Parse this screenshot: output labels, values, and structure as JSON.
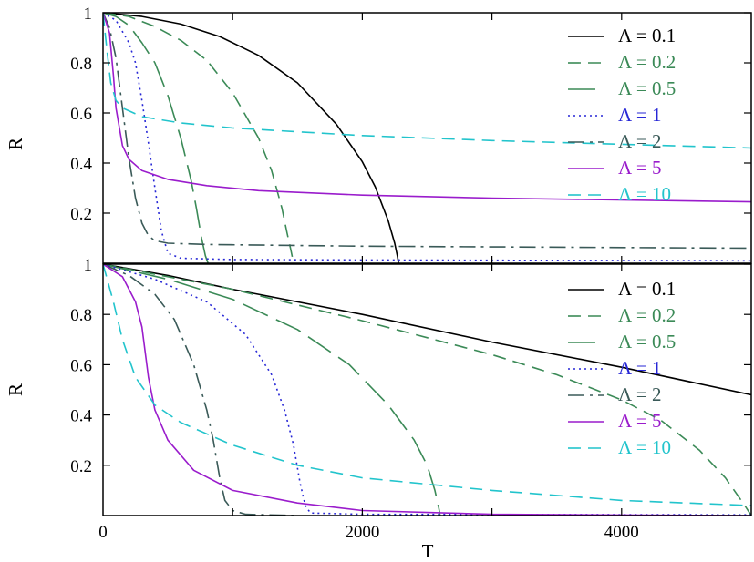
{
  "chart_data": [
    {
      "type": "line",
      "panel": "top",
      "xlabel": "",
      "ylabel": "R",
      "xlim": [
        0,
        5000
      ],
      "ylim": [
        0,
        1
      ],
      "yticks": [
        1,
        0.8,
        0.6,
        0.4,
        0.2
      ],
      "legend_position": "top-right",
      "series": [
        {
          "name": "Λ = 0.1",
          "color": "#000000",
          "dash": "solid",
          "x": [
            0,
            300,
            600,
            900,
            1200,
            1500,
            1800,
            2000,
            2100,
            2200,
            2250,
            2270,
            2280
          ],
          "y": [
            1,
            0.985,
            0.955,
            0.905,
            0.83,
            0.72,
            0.555,
            0.405,
            0.305,
            0.17,
            0.08,
            0.03,
            0.0
          ]
        },
        {
          "name": "Λ = 0.2",
          "color": "#3b8a57",
          "dash": "dashed",
          "x": [
            0,
            200,
            400,
            600,
            800,
            1000,
            1200,
            1300,
            1380,
            1420,
            1450,
            1470
          ],
          "y": [
            1,
            0.985,
            0.945,
            0.89,
            0.81,
            0.68,
            0.5,
            0.37,
            0.22,
            0.12,
            0.05,
            0.0
          ]
        },
        {
          "name": "Λ = 0.5",
          "color": "#3b8a57",
          "dash": "longdash",
          "x": [
            0,
            100,
            200,
            300,
            400,
            500,
            600,
            680,
            720,
            760,
            790,
            810
          ],
          "y": [
            1,
            0.985,
            0.95,
            0.88,
            0.8,
            0.67,
            0.5,
            0.33,
            0.22,
            0.1,
            0.03,
            0.0
          ]
        },
        {
          "name": "Λ = 1",
          "color": "#2727d6",
          "dash": "dotted",
          "x": [
            0,
            100,
            200,
            250,
            300,
            350,
            400,
            450,
            500,
            600,
            1000,
            2000,
            5000
          ],
          "y": [
            1,
            0.97,
            0.88,
            0.8,
            0.65,
            0.48,
            0.3,
            0.13,
            0.04,
            0.02,
            0.015,
            0.013,
            0.01
          ]
        },
        {
          "name": "Λ = 2",
          "color": "#3a5a58",
          "dash": "dashdot",
          "x": [
            0,
            50,
            100,
            150,
            200,
            250,
            300,
            350,
            400,
            500,
            800,
            2000,
            5000
          ],
          "y": [
            1,
            0.94,
            0.82,
            0.62,
            0.42,
            0.26,
            0.16,
            0.11,
            0.09,
            0.08,
            0.075,
            0.068,
            0.06
          ]
        },
        {
          "name": "Λ = 5",
          "color": "#9a1ccc",
          "dash": "solid",
          "x": [
            0,
            50,
            80,
            100,
            150,
            200,
            300,
            500,
            800,
            1200,
            2000,
            3000,
            5000
          ],
          "y": [
            1,
            0.92,
            0.75,
            0.62,
            0.47,
            0.415,
            0.37,
            0.335,
            0.31,
            0.29,
            0.272,
            0.26,
            0.245
          ]
        },
        {
          "name": "Λ = 10",
          "color": "#22c4cc",
          "dash": "dashed",
          "x": [
            0,
            30,
            60,
            100,
            150,
            300,
            600,
            1000,
            2000,
            3000,
            5000
          ],
          "y": [
            1,
            0.85,
            0.72,
            0.65,
            0.62,
            0.585,
            0.56,
            0.54,
            0.51,
            0.49,
            0.46
          ]
        }
      ]
    },
    {
      "type": "line",
      "panel": "bottom",
      "xlabel": "T",
      "ylabel": "R",
      "xlim": [
        0,
        5000
      ],
      "ylim": [
        0,
        1
      ],
      "xticks": [
        0,
        2000,
        4000
      ],
      "yticks": [
        1,
        0.8,
        0.6,
        0.4,
        0.2
      ],
      "legend_position": "top-right",
      "series": [
        {
          "name": "Λ = 0.1",
          "color": "#000000",
          "dash": "solid",
          "x": [
            0,
            500,
            1000,
            2000,
            3000,
            4000,
            5000
          ],
          "y": [
            1,
            0.955,
            0.9,
            0.8,
            0.69,
            0.59,
            0.48
          ]
        },
        {
          "name": "Λ = 0.2",
          "color": "#3b8a57",
          "dash": "dashed",
          "x": [
            0,
            1000,
            2000,
            3000,
            3500,
            4000,
            4300,
            4600,
            4800,
            4950,
            5000
          ],
          "y": [
            1,
            0.9,
            0.775,
            0.64,
            0.56,
            0.46,
            0.38,
            0.26,
            0.15,
            0.04,
            0.0
          ]
        },
        {
          "name": "Λ = 0.5",
          "color": "#3b8a57",
          "dash": "longdash",
          "x": [
            0,
            500,
            1000,
            1500,
            1900,
            2200,
            2400,
            2500,
            2560,
            2590,
            2600
          ],
          "y": [
            1,
            0.94,
            0.86,
            0.74,
            0.6,
            0.44,
            0.3,
            0.2,
            0.1,
            0.03,
            0.0
          ]
        },
        {
          "name": "Λ = 1",
          "color": "#2727d6",
          "dash": "dotted",
          "x": [
            0,
            400,
            800,
            1100,
            1300,
            1400,
            1470,
            1520,
            1560,
            1600,
            2000,
            5000
          ],
          "y": [
            1,
            0.94,
            0.85,
            0.72,
            0.56,
            0.42,
            0.28,
            0.13,
            0.04,
            0.01,
            0.005,
            0.003
          ]
        },
        {
          "name": "Λ = 2",
          "color": "#3a5a58",
          "dash": "dashdot",
          "x": [
            0,
            200,
            400,
            550,
            700,
            800,
            850,
            900,
            940,
            1000,
            1100,
            1500
          ],
          "y": [
            1,
            0.955,
            0.88,
            0.78,
            0.6,
            0.42,
            0.3,
            0.15,
            0.06,
            0.02,
            0.005,
            0.0
          ]
        },
        {
          "name": "Λ = 5",
          "color": "#9a1ccc",
          "dash": "solid",
          "x": [
            0,
            150,
            250,
            300,
            350,
            400,
            500,
            700,
            1000,
            1500,
            2000,
            3000,
            4000,
            5000
          ],
          "y": [
            1,
            0.95,
            0.85,
            0.75,
            0.55,
            0.42,
            0.3,
            0.18,
            0.1,
            0.05,
            0.02,
            0.005,
            0.002,
            0.0
          ]
        },
        {
          "name": "Λ = 10",
          "color": "#22c4cc",
          "dash": "dashed",
          "x": [
            0,
            80,
            150,
            250,
            400,
            600,
            1000,
            1500,
            2000,
            3000,
            4000,
            5000
          ],
          "y": [
            1,
            0.85,
            0.7,
            0.55,
            0.44,
            0.37,
            0.28,
            0.2,
            0.15,
            0.1,
            0.06,
            0.04
          ]
        }
      ]
    }
  ]
}
